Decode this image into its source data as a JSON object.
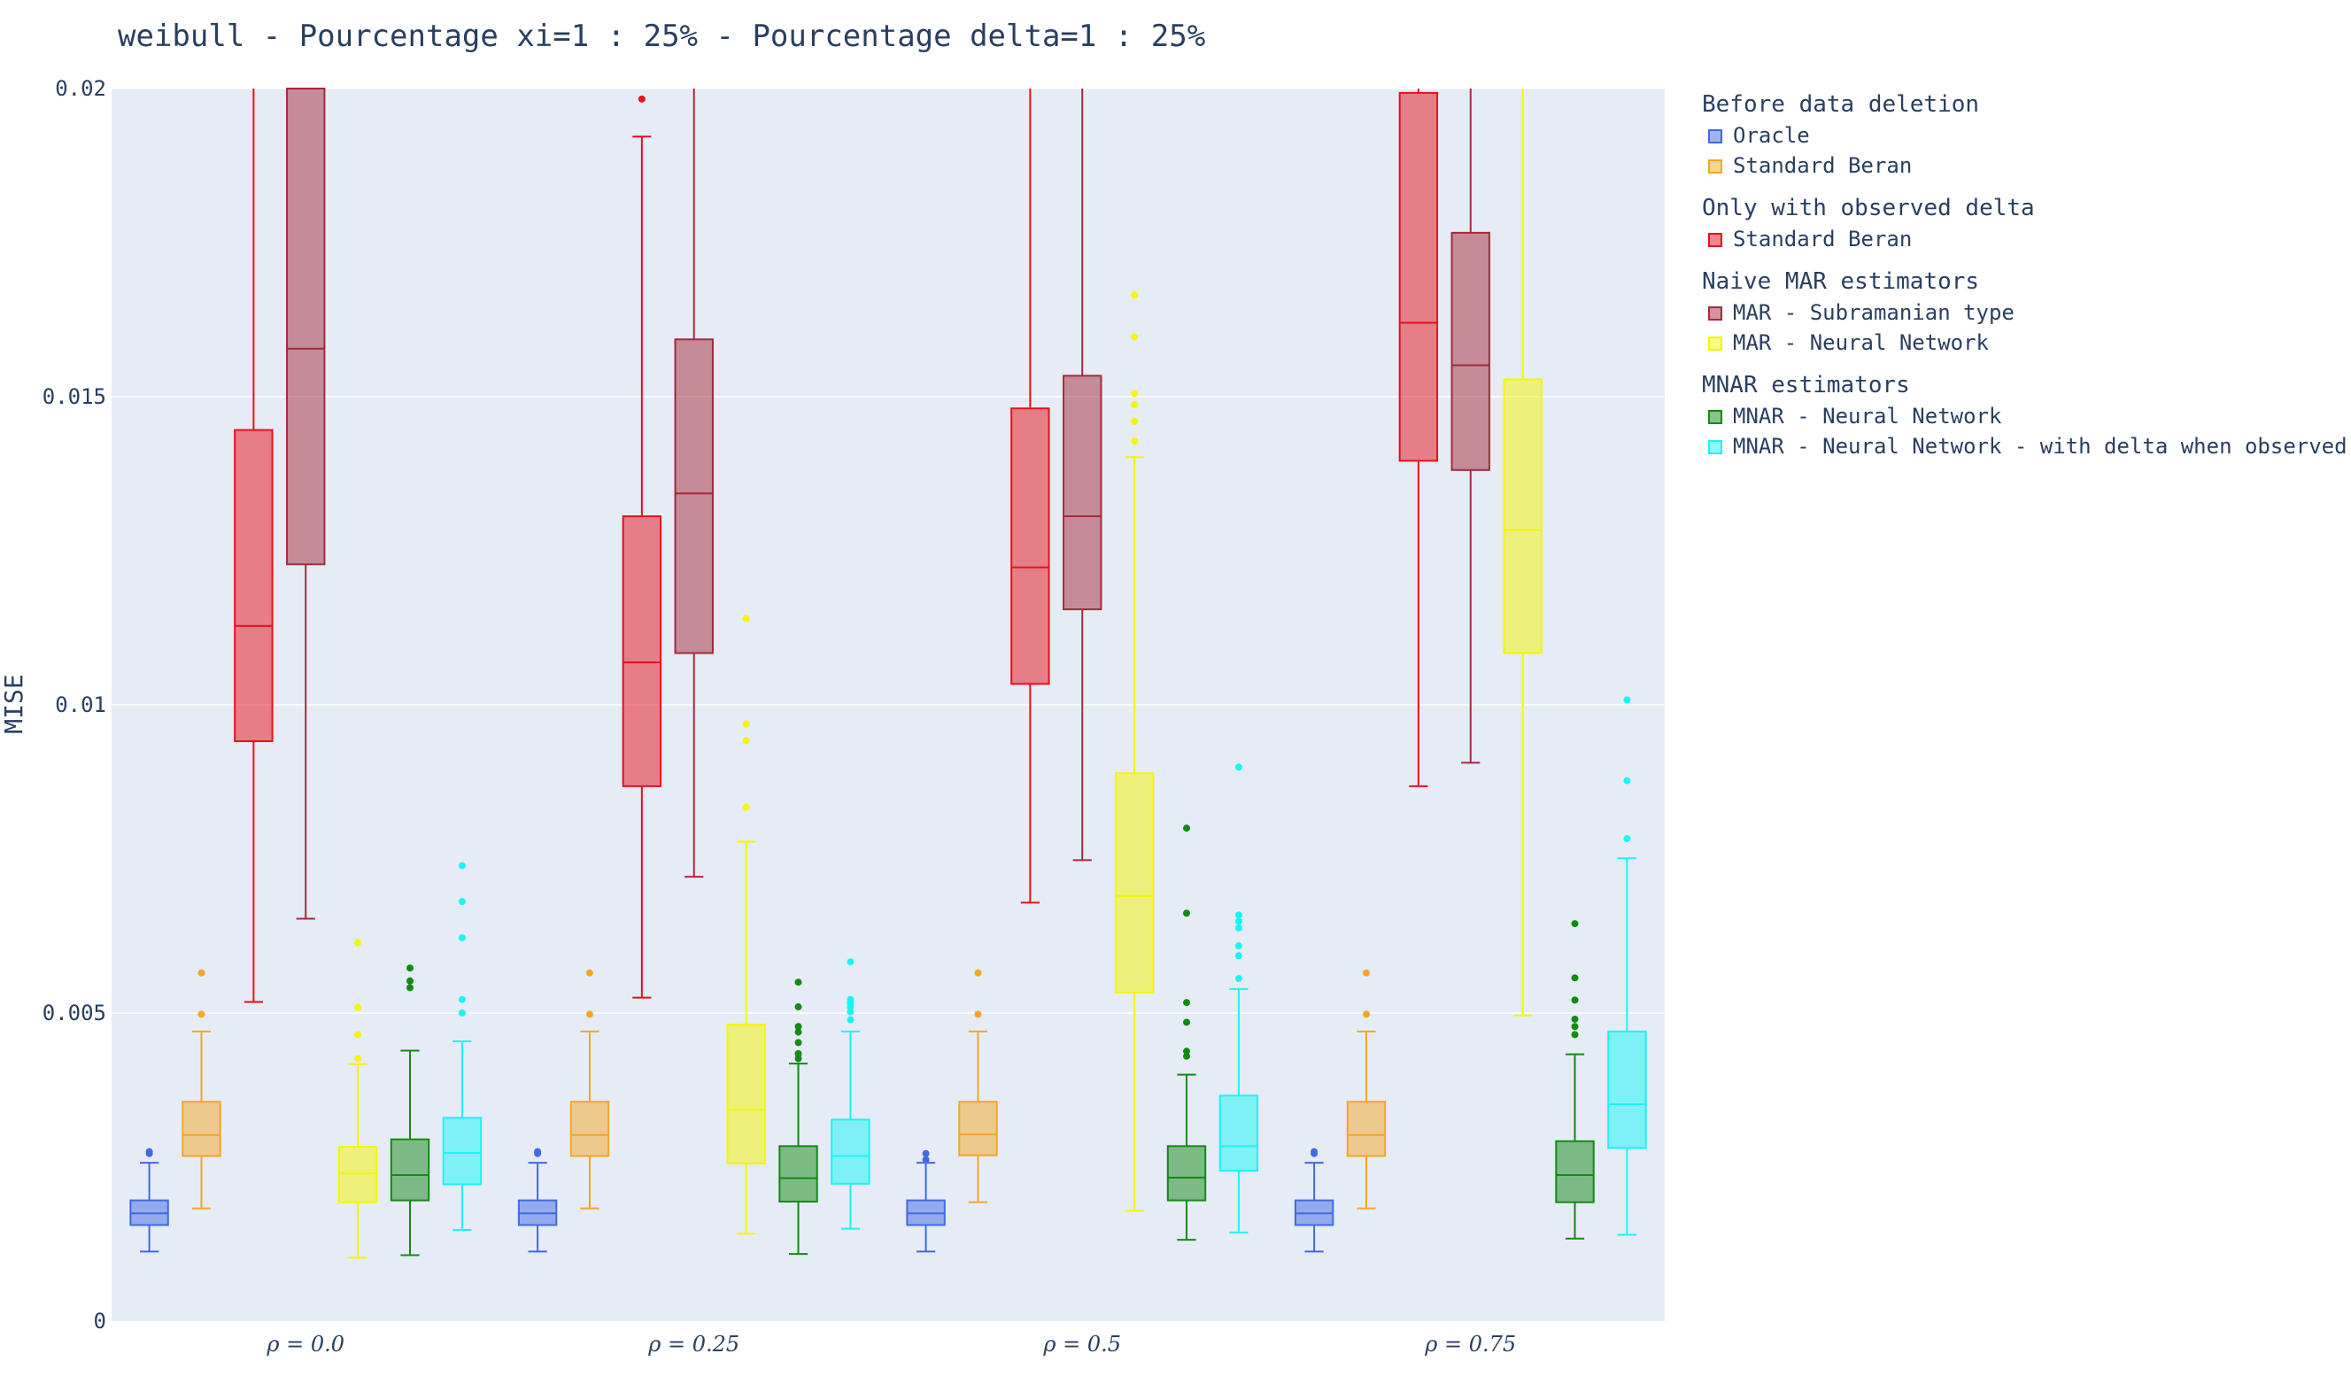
{
  "chart_data": {
    "type": "box",
    "title": "weibull - Pourcentage xi=1 : 25% - Pourcentage delta=1 : 25%",
    "ylabel": "MISE",
    "xlabel": "",
    "ylim": [
      0,
      0.02
    ],
    "yticks": [
      "0",
      "0.005",
      "0.01",
      "0.015",
      "0.02"
    ],
    "ytick_values": [
      0,
      0.005,
      0.01,
      0.015,
      0.02
    ],
    "grid": true,
    "legend_placement": "right",
    "categories": [
      "ρ = 0.0",
      "ρ = 0.25",
      "ρ = 0.5",
      "ρ = 0.75"
    ],
    "legend_groups": [
      {
        "title": "Before data deletion",
        "items": [
          "Oracle",
          "Standard Beran"
        ]
      },
      {
        "title": "Only with observed delta",
        "items": [
          "Standard Beran"
        ]
      },
      {
        "title": "Naive MAR estimators",
        "items": [
          "MAR - Subramanian type",
          "MAR - Neural Network"
        ]
      },
      {
        "title": "MNAR estimators",
        "items": [
          "MNAR - Neural Network",
          "MNAR - Neural Network - with delta when observed"
        ]
      }
    ],
    "series": [
      {
        "name": "Oracle",
        "color": "#4169e1",
        "boxes": [
          {
            "min": 0.00113,
            "q1": 0.00156,
            "median": 0.00175,
            "q3": 0.00196,
            "max": 0.00257,
            "outliers": [
              0.00272,
              0.00275
            ]
          },
          {
            "min": 0.00113,
            "q1": 0.00156,
            "median": 0.00175,
            "q3": 0.00196,
            "max": 0.00257,
            "outliers": [
              0.00272,
              0.00275
            ]
          },
          {
            "min": 0.00113,
            "q1": 0.00156,
            "median": 0.00175,
            "q3": 0.00196,
            "max": 0.00257,
            "outliers": [
              0.00262,
              0.00272
            ]
          },
          {
            "min": 0.00113,
            "q1": 0.00156,
            "median": 0.00175,
            "q3": 0.00196,
            "max": 0.00257,
            "outliers": [
              0.00272,
              0.00275
            ]
          }
        ]
      },
      {
        "name": "Standard Beran",
        "color": "#f5a623",
        "boxes": [
          {
            "min": 0.00183,
            "q1": 0.00268,
            "median": 0.00302,
            "q3": 0.00356,
            "max": 0.0047,
            "outliers": [
              0.00498,
              0.00565
            ]
          },
          {
            "min": 0.00183,
            "q1": 0.00268,
            "median": 0.00302,
            "q3": 0.00356,
            "max": 0.0047,
            "outliers": [
              0.00498,
              0.00565
            ]
          },
          {
            "min": 0.00193,
            "q1": 0.00269,
            "median": 0.00303,
            "q3": 0.00356,
            "max": 0.0047,
            "outliers": [
              0.00498,
              0.00565
            ]
          },
          {
            "min": 0.00183,
            "q1": 0.00268,
            "median": 0.00302,
            "q3": 0.00356,
            "max": 0.0047,
            "outliers": [
              0.00498,
              0.00565
            ]
          }
        ]
      },
      {
        "name": "Standard Beran (observed delta)",
        "color": "#e8101a",
        "boxes": [
          {
            "min": 0.00518,
            "q1": 0.00941,
            "median": 0.01128,
            "q3": 0.01446,
            "max": 0.02,
            "outliers": []
          },
          {
            "min": 0.00525,
            "q1": 0.00868,
            "median": 0.01069,
            "q3": 0.01306,
            "max": 0.01922,
            "outliers": [
              0.01983
            ]
          },
          {
            "min": 0.00679,
            "q1": 0.01034,
            "median": 0.01223,
            "q3": 0.01481,
            "max": 0.02,
            "outliers": []
          },
          {
            "min": 0.00868,
            "q1": 0.01396,
            "median": 0.0162,
            "q3": 0.01993,
            "max": 0.02,
            "outliers": []
          }
        ]
      },
      {
        "name": "MAR - Subramanian type",
        "color": "#a52a3a",
        "boxes": [
          {
            "min": 0.00653,
            "q1": 0.01228,
            "median": 0.01578,
            "q3": 0.02,
            "max": 0.02,
            "outliers": []
          },
          {
            "min": 0.00721,
            "q1": 0.01084,
            "median": 0.01343,
            "q3": 0.01593,
            "max": 0.02,
            "outliers": []
          },
          {
            "min": 0.00748,
            "q1": 0.01155,
            "median": 0.01306,
            "q3": 0.01534,
            "max": 0.02,
            "outliers": []
          },
          {
            "min": 0.00906,
            "q1": 0.01381,
            "median": 0.01551,
            "q3": 0.01766,
            "max": 0.02,
            "outliers": []
          }
        ]
      },
      {
        "name": "MAR - Neural Network",
        "color": "#f5f500",
        "boxes": [
          {
            "min": 0.00103,
            "q1": 0.00193,
            "median": 0.0024,
            "q3": 0.00283,
            "max": 0.00417,
            "outliers": [
              0.00426,
              0.00465,
              0.00509,
              0.00614
            ]
          },
          {
            "min": 0.00142,
            "q1": 0.00256,
            "median": 0.00343,
            "q3": 0.00481,
            "max": 0.00778,
            "outliers": [
              0.00834,
              0.00942,
              0.00969,
              0.0114
            ]
          },
          {
            "min": 0.00179,
            "q1": 0.00533,
            "median": 0.0069,
            "q3": 0.00889,
            "max": 0.01402,
            "outliers": [
              0.01428,
              0.0146,
              0.01487,
              0.01505,
              0.01597,
              0.01665
            ]
          },
          {
            "min": 0.00496,
            "q1": 0.01084,
            "median": 0.01284,
            "q3": 0.01528,
            "max": 0.02,
            "outliers": []
          }
        ]
      },
      {
        "name": "MNAR - Neural Network",
        "color": "#138a13",
        "boxes": [
          {
            "min": 0.00107,
            "q1": 0.00196,
            "median": 0.00237,
            "q3": 0.00295,
            "max": 0.00439,
            "outliers": [
              0.00541,
              0.00552,
              0.00573
            ]
          },
          {
            "min": 0.00109,
            "q1": 0.00194,
            "median": 0.00232,
            "q3": 0.00284,
            "max": 0.00418,
            "outliers": [
              0.00426,
              0.00434,
              0.00452,
              0.00469,
              0.00478,
              0.0051,
              0.0055
            ]
          },
          {
            "min": 0.00132,
            "q1": 0.00196,
            "median": 0.00233,
            "q3": 0.00284,
            "max": 0.004,
            "outliers": [
              0.0043,
              0.00438,
              0.00485,
              0.00517,
              0.00662,
              0.008
            ]
          },
          {
            "min": 0.00134,
            "q1": 0.00193,
            "median": 0.00237,
            "q3": 0.00292,
            "max": 0.00433,
            "outliers": [
              0.00465,
              0.00478,
              0.0049,
              0.00521,
              0.00557,
              0.00645
            ]
          }
        ]
      },
      {
        "name": "MNAR - Neural Network - with delta when observed",
        "color": "#18f5f5",
        "boxes": [
          {
            "min": 0.00148,
            "q1": 0.00222,
            "median": 0.00273,
            "q3": 0.0033,
            "max": 0.00454,
            "outliers": [
              0.005,
              0.00522,
              0.00622,
              0.00681,
              0.00739
            ]
          },
          {
            "min": 0.0015,
            "q1": 0.00223,
            "median": 0.00268,
            "q3": 0.00327,
            "max": 0.0047,
            "outliers": [
              0.00489,
              0.00502,
              0.0051,
              0.00516,
              0.00522,
              0.00583
            ]
          },
          {
            "min": 0.00144,
            "q1": 0.00244,
            "median": 0.00284,
            "q3": 0.00366,
            "max": 0.00539,
            "outliers": [
              0.00556,
              0.00593,
              0.00609,
              0.00638,
              0.00649,
              0.00659,
              0.00899
            ]
          },
          {
            "min": 0.0014,
            "q1": 0.00281,
            "median": 0.00352,
            "q3": 0.0047,
            "max": 0.00751,
            "outliers": [
              0.00783,
              0.00877,
              0.01008
            ]
          }
        ]
      }
    ]
  }
}
